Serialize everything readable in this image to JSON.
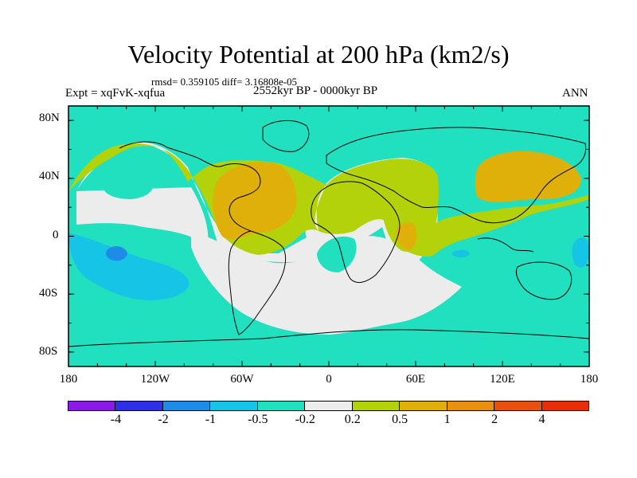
{
  "title": "Velocity Potential at 200 hPa (km2/s)",
  "stats": "rmsd= 0.359105 diff= 3.16808e-05",
  "experiment": "Expt = xqFvK-xqfua",
  "period": "2552kyr BP - 0000kyr BP",
  "season": "ANN",
  "lat_ticks": [
    "80N",
    "40N",
    "0",
    "40S",
    "80S"
  ],
  "lon_ticks": [
    "180",
    "120W",
    "60W",
    "0",
    "60E",
    "120E",
    "180"
  ],
  "colorbar": {
    "colors": [
      "#8b1ae6",
      "#2f2fe6",
      "#1e8ce6",
      "#16c4e6",
      "#20e0c0",
      "#ececec",
      "#b4d20a",
      "#e0b00a",
      "#e89010",
      "#e85010",
      "#e82e08"
    ],
    "labels": [
      "-4",
      "-2",
      "-1",
      "-0.5",
      "-0.2",
      "0.2",
      "0.5",
      "1",
      "2",
      "4"
    ]
  }
}
